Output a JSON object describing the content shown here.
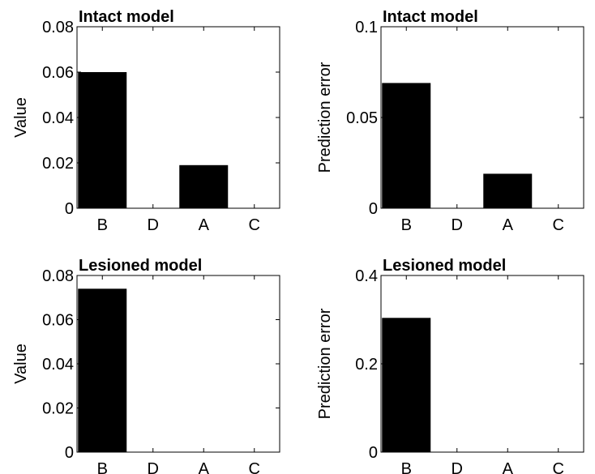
{
  "chart_data": [
    {
      "type": "bar",
      "title": "Intact model",
      "y_label": "Value",
      "categories": [
        "B",
        "D",
        "A",
        "C"
      ],
      "values": [
        0.06,
        0,
        0.019,
        0
      ],
      "color": "#000000",
      "ylim": [
        0,
        0.08
      ],
      "yticks": [
        0,
        0.02,
        0.04,
        0.06,
        0.08
      ]
    },
    {
      "type": "bar",
      "title": "Intact model",
      "y_label": "Prediction error",
      "categories": [
        "B",
        "D",
        "A",
        "C"
      ],
      "values": [
        0.069,
        0,
        0.019,
        0
      ],
      "color": "#000000",
      "ylim": [
        0,
        0.1
      ],
      "yticks": [
        0,
        0.05,
        0.1
      ]
    },
    {
      "type": "bar",
      "title": "Lesioned model",
      "y_label": "Value",
      "categories": [
        "B",
        "D",
        "A",
        "C"
      ],
      "values": [
        0.074,
        0,
        0,
        0
      ],
      "color": "#000000",
      "ylim": [
        0,
        0.08
      ],
      "yticks": [
        0,
        0.02,
        0.04,
        0.06,
        0.08
      ]
    },
    {
      "type": "bar",
      "title": "Lesioned model",
      "y_label": "Prediction error",
      "categories": [
        "B",
        "D",
        "A",
        "C"
      ],
      "values": [
        0.304,
        0,
        0,
        0
      ],
      "color": "#000000",
      "ylim": [
        0,
        0.4
      ],
      "yticks": [
        0,
        0.2,
        0.4
      ]
    }
  ]
}
